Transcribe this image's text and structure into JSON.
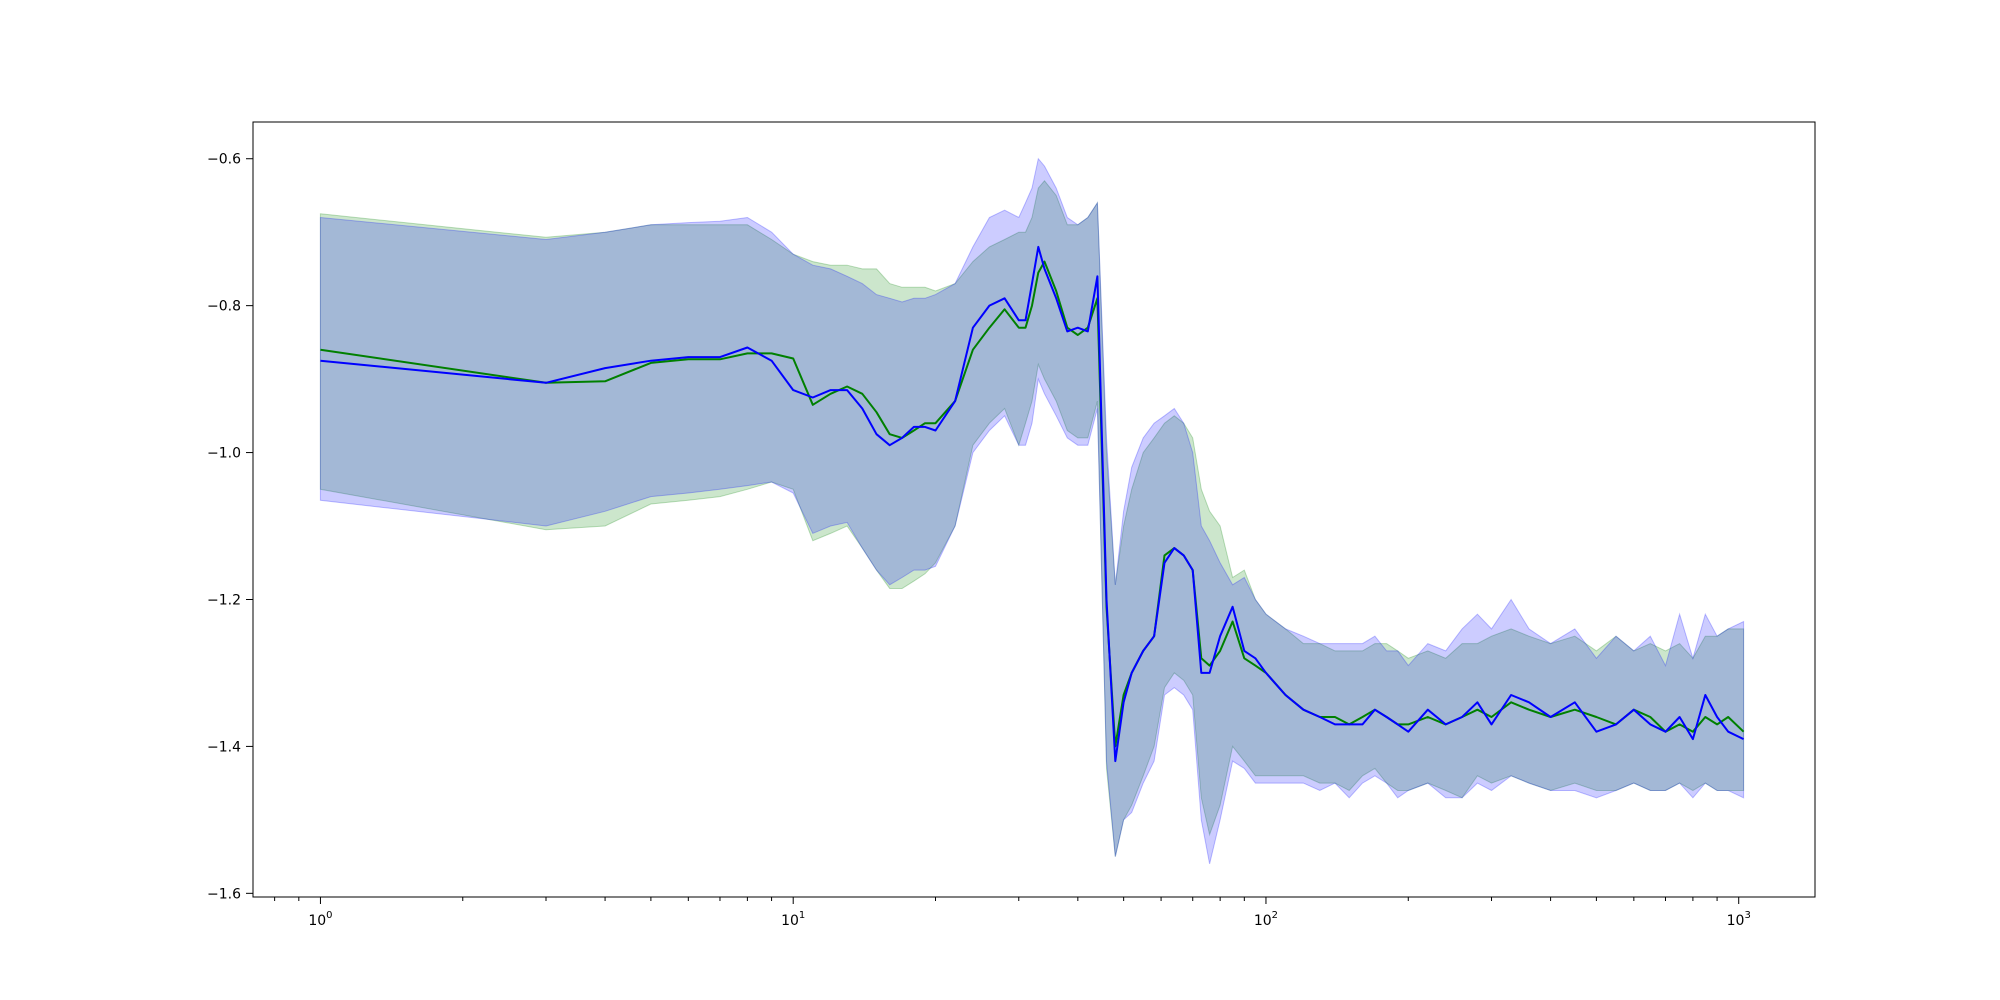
{
  "chart_data": {
    "type": "line",
    "title": "",
    "xlabel": "",
    "ylabel": "",
    "x_scale": "log",
    "xlim": [
      0.72,
      1450
    ],
    "ylim": [
      -1.605,
      -0.55
    ],
    "grid": false,
    "x_ticks": [
      {
        "value": 1,
        "base": "10",
        "exp": "0"
      },
      {
        "value": 10,
        "base": "10",
        "exp": "1"
      },
      {
        "value": 100,
        "base": "10",
        "exp": "2"
      },
      {
        "value": 1000,
        "base": "10",
        "exp": "3"
      }
    ],
    "y_ticks": [
      {
        "value": -0.6,
        "label": "−0.6"
      },
      {
        "value": -0.8,
        "label": "−0.8"
      },
      {
        "value": -1.0,
        "label": "−1.0"
      },
      {
        "value": -1.2,
        "label": "−1.2"
      },
      {
        "value": -1.4,
        "label": "−1.4"
      },
      {
        "value": -1.6,
        "label": "−1.6"
      }
    ],
    "series": [
      {
        "color": "#008000",
        "band_color": "#008000",
        "x": [
          1,
          3,
          4,
          5,
          6,
          7,
          8,
          9,
          10,
          11,
          12,
          13,
          14,
          15,
          16,
          17,
          18,
          19,
          20,
          22,
          24,
          26,
          28,
          30,
          31,
          32,
          33,
          34,
          36,
          38,
          40,
          42,
          44,
          46,
          48,
          50,
          52,
          55,
          58,
          61,
          64,
          67,
          70,
          73,
          76,
          80,
          85,
          90,
          95,
          100,
          110,
          120,
          130,
          140,
          150,
          160,
          170,
          180,
          190,
          200,
          220,
          240,
          260,
          280,
          300,
          330,
          360,
          400,
          450,
          500,
          550,
          600,
          650,
          700,
          750,
          800,
          850,
          900,
          950,
          1024
        ],
        "values": [
          -0.86,
          -0.905,
          -0.903,
          -0.878,
          -0.873,
          -0.873,
          -0.865,
          -0.865,
          -0.872,
          -0.935,
          -0.92,
          -0.91,
          -0.92,
          -0.945,
          -0.975,
          -0.98,
          -0.97,
          -0.96,
          -0.96,
          -0.93,
          -0.86,
          -0.83,
          -0.805,
          -0.83,
          -0.83,
          -0.8,
          -0.755,
          -0.74,
          -0.78,
          -0.83,
          -0.84,
          -0.83,
          -0.79,
          -1.21,
          -1.4,
          -1.33,
          -1.3,
          -1.27,
          -1.25,
          -1.14,
          -1.13,
          -1.14,
          -1.16,
          -1.28,
          -1.29,
          -1.27,
          -1.23,
          -1.28,
          -1.29,
          -1.3,
          -1.33,
          -1.35,
          -1.36,
          -1.36,
          -1.37,
          -1.36,
          -1.35,
          -1.36,
          -1.37,
          -1.37,
          -1.36,
          -1.37,
          -1.36,
          -1.35,
          -1.36,
          -1.34,
          -1.35,
          -1.36,
          -1.35,
          -1.36,
          -1.37,
          -1.35,
          -1.36,
          -1.38,
          -1.37,
          -1.38,
          -1.36,
          -1.37,
          -1.36,
          -1.38
        ],
        "upper": [
          -0.675,
          -0.707,
          -0.7,
          -0.69,
          -0.69,
          -0.69,
          -0.69,
          -0.71,
          -0.73,
          -0.74,
          -0.745,
          -0.745,
          -0.75,
          -0.75,
          -0.77,
          -0.775,
          -0.775,
          -0.775,
          -0.78,
          -0.77,
          -0.74,
          -0.72,
          -0.71,
          -0.7,
          -0.7,
          -0.68,
          -0.64,
          -0.63,
          -0.65,
          -0.69,
          -0.69,
          -0.68,
          -0.66,
          -1.0,
          -1.18,
          -1.1,
          -1.05,
          -1.0,
          -0.98,
          -0.96,
          -0.95,
          -0.96,
          -0.98,
          -1.05,
          -1.08,
          -1.1,
          -1.17,
          -1.16,
          -1.2,
          -1.22,
          -1.24,
          -1.26,
          -1.26,
          -1.27,
          -1.27,
          -1.27,
          -1.26,
          -1.26,
          -1.27,
          -1.28,
          -1.27,
          -1.28,
          -1.26,
          -1.26,
          -1.25,
          -1.24,
          -1.25,
          -1.26,
          -1.25,
          -1.27,
          -1.25,
          -1.27,
          -1.26,
          -1.27,
          -1.26,
          -1.28,
          -1.25,
          -1.25,
          -1.24,
          -1.24
        ],
        "lower": [
          -1.05,
          -1.105,
          -1.1,
          -1.07,
          -1.065,
          -1.06,
          -1.05,
          -1.04,
          -1.05,
          -1.12,
          -1.11,
          -1.1,
          -1.13,
          -1.16,
          -1.185,
          -1.185,
          -1.175,
          -1.165,
          -1.15,
          -1.1,
          -0.99,
          -0.96,
          -0.94,
          -0.99,
          -0.96,
          -0.93,
          -0.88,
          -0.9,
          -0.93,
          -0.97,
          -0.98,
          -0.98,
          -0.93,
          -1.43,
          -1.55,
          -1.5,
          -1.48,
          -1.44,
          -1.4,
          -1.32,
          -1.3,
          -1.31,
          -1.33,
          -1.47,
          -1.52,
          -1.48,
          -1.4,
          -1.42,
          -1.44,
          -1.44,
          -1.44,
          -1.44,
          -1.45,
          -1.45,
          -1.46,
          -1.44,
          -1.43,
          -1.45,
          -1.46,
          -1.46,
          -1.45,
          -1.46,
          -1.47,
          -1.44,
          -1.45,
          -1.44,
          -1.45,
          -1.46,
          -1.45,
          -1.46,
          -1.46,
          -1.45,
          -1.46,
          -1.46,
          -1.45,
          -1.46,
          -1.45,
          -1.46,
          -1.46,
          -1.46
        ]
      },
      {
        "color": "#0000ff",
        "band_color": "#0000ff",
        "x": [
          1,
          3,
          4,
          5,
          6,
          7,
          8,
          9,
          10,
          11,
          12,
          13,
          14,
          15,
          16,
          17,
          18,
          19,
          20,
          22,
          24,
          26,
          28,
          30,
          31,
          32,
          33,
          34,
          36,
          38,
          40,
          42,
          44,
          46,
          48,
          50,
          52,
          55,
          58,
          61,
          64,
          67,
          70,
          73,
          76,
          80,
          85,
          90,
          95,
          100,
          110,
          120,
          130,
          140,
          150,
          160,
          170,
          180,
          190,
          200,
          220,
          240,
          260,
          280,
          300,
          330,
          360,
          400,
          450,
          500,
          550,
          600,
          650,
          700,
          750,
          800,
          850,
          900,
          950,
          1024
        ],
        "values": [
          -0.875,
          -0.905,
          -0.885,
          -0.875,
          -0.87,
          -0.87,
          -0.857,
          -0.875,
          -0.915,
          -0.925,
          -0.915,
          -0.915,
          -0.94,
          -0.975,
          -0.99,
          -0.98,
          -0.965,
          -0.965,
          -0.97,
          -0.93,
          -0.83,
          -0.8,
          -0.79,
          -0.82,
          -0.82,
          -0.77,
          -0.72,
          -0.75,
          -0.79,
          -0.835,
          -0.83,
          -0.835,
          -0.76,
          -1.2,
          -1.42,
          -1.34,
          -1.3,
          -1.27,
          -1.25,
          -1.15,
          -1.13,
          -1.14,
          -1.16,
          -1.3,
          -1.3,
          -1.25,
          -1.21,
          -1.27,
          -1.28,
          -1.3,
          -1.33,
          -1.35,
          -1.36,
          -1.37,
          -1.37,
          -1.37,
          -1.35,
          -1.36,
          -1.37,
          -1.38,
          -1.35,
          -1.37,
          -1.36,
          -1.34,
          -1.37,
          -1.33,
          -1.34,
          -1.36,
          -1.34,
          -1.38,
          -1.37,
          -1.35,
          -1.37,
          -1.38,
          -1.36,
          -1.39,
          -1.33,
          -1.36,
          -1.38,
          -1.39
        ],
        "upper": [
          -0.68,
          -0.71,
          -0.7,
          -0.69,
          -0.687,
          -0.685,
          -0.68,
          -0.7,
          -0.73,
          -0.745,
          -0.75,
          -0.76,
          -0.77,
          -0.785,
          -0.79,
          -0.795,
          -0.79,
          -0.79,
          -0.785,
          -0.77,
          -0.72,
          -0.68,
          -0.67,
          -0.68,
          -0.66,
          -0.64,
          -0.6,
          -0.61,
          -0.64,
          -0.68,
          -0.69,
          -0.68,
          -0.66,
          -0.98,
          -1.18,
          -1.08,
          -1.02,
          -0.98,
          -0.96,
          -0.95,
          -0.94,
          -0.96,
          -1.0,
          -1.1,
          -1.12,
          -1.15,
          -1.18,
          -1.17,
          -1.2,
          -1.22,
          -1.24,
          -1.25,
          -1.26,
          -1.26,
          -1.26,
          -1.26,
          -1.25,
          -1.27,
          -1.27,
          -1.29,
          -1.26,
          -1.27,
          -1.24,
          -1.22,
          -1.24,
          -1.2,
          -1.24,
          -1.26,
          -1.24,
          -1.28,
          -1.25,
          -1.27,
          -1.25,
          -1.29,
          -1.22,
          -1.28,
          -1.22,
          -1.25,
          -1.24,
          -1.23
        ],
        "lower": [
          -1.065,
          -1.1,
          -1.08,
          -1.06,
          -1.055,
          -1.05,
          -1.045,
          -1.04,
          -1.055,
          -1.11,
          -1.1,
          -1.095,
          -1.13,
          -1.16,
          -1.18,
          -1.17,
          -1.16,
          -1.16,
          -1.155,
          -1.1,
          -1.0,
          -0.97,
          -0.95,
          -0.99,
          -0.99,
          -0.96,
          -0.9,
          -0.92,
          -0.95,
          -0.98,
          -0.99,
          -0.99,
          -0.94,
          -1.42,
          -1.55,
          -1.5,
          -1.49,
          -1.45,
          -1.42,
          -1.33,
          -1.32,
          -1.33,
          -1.35,
          -1.5,
          -1.56,
          -1.5,
          -1.42,
          -1.43,
          -1.45,
          -1.45,
          -1.45,
          -1.45,
          -1.46,
          -1.45,
          -1.47,
          -1.45,
          -1.44,
          -1.45,
          -1.47,
          -1.46,
          -1.45,
          -1.47,
          -1.47,
          -1.45,
          -1.46,
          -1.44,
          -1.45,
          -1.46,
          -1.46,
          -1.47,
          -1.46,
          -1.45,
          -1.46,
          -1.46,
          -1.45,
          -1.47,
          -1.45,
          -1.46,
          -1.46,
          -1.47
        ]
      }
    ]
  }
}
